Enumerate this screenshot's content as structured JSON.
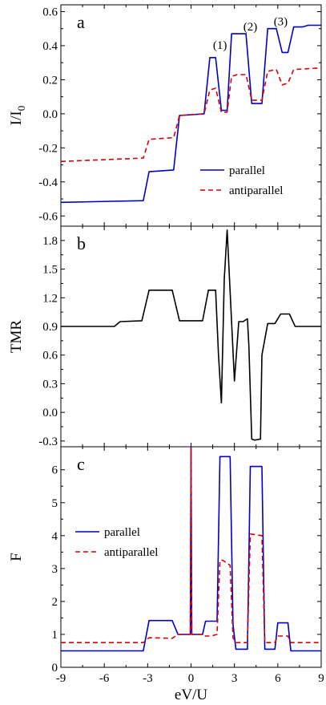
{
  "chart_data": [
    {
      "type": "line",
      "panel_label": "a",
      "ylabel_main": "I/I",
      "ylabel_sub": "0",
      "xlim": [
        -9,
        9
      ],
      "ylim": [
        -0.66,
        0.64
      ],
      "yticks": [
        -0.6,
        -0.4,
        -0.2,
        0.0,
        0.2,
        0.4,
        0.6
      ],
      "ytick_labels": [
        "-0.6",
        "-0.4",
        "-0.2",
        "0.0",
        "0.2",
        "0.4",
        "0.6"
      ],
      "annotations": [
        {
          "text": "(1)",
          "x": 2.0,
          "y": 0.38
        },
        {
          "text": "(2)",
          "x": 4.1,
          "y": 0.49
        },
        {
          "text": "(3)",
          "x": 6.2,
          "y": 0.52
        }
      ],
      "legend": {
        "position": "lower-right",
        "entries": [
          "parallel",
          "antiparallel"
        ]
      },
      "series": [
        {
          "name": "parallel",
          "color": "#0000cc",
          "dash": "solid",
          "x": [
            -9,
            -3.3,
            -2.9,
            -1.2,
            -0.8,
            0.9,
            1.3,
            1.7,
            2.1,
            2.5,
            2.8,
            3.2,
            3.8,
            4.2,
            4.9,
            5.3,
            5.9,
            6.3,
            6.7,
            7.1,
            7.7,
            8.1,
            9
          ],
          "y": [
            -0.52,
            -0.51,
            -0.34,
            -0.33,
            -0.01,
            0.0,
            0.33,
            0.33,
            0.02,
            0.02,
            0.47,
            0.47,
            0.47,
            0.06,
            0.06,
            0.5,
            0.5,
            0.36,
            0.36,
            0.51,
            0.51,
            0.52,
            0.52
          ]
        },
        {
          "name": "antiparallel",
          "color": "#dd0000",
          "dash": "dashed",
          "x": [
            -9,
            -3.3,
            -2.9,
            -1.2,
            -0.8,
            0.9,
            1.3,
            1.7,
            2.1,
            2.5,
            2.8,
            3.2,
            3.8,
            4.2,
            4.9,
            5.3,
            5.9,
            6.3,
            6.7,
            7.1,
            9
          ],
          "y": [
            -0.28,
            -0.26,
            -0.15,
            -0.14,
            -0.01,
            0.0,
            0.14,
            0.15,
            0.01,
            0.01,
            0.22,
            0.23,
            0.23,
            0.08,
            0.08,
            0.25,
            0.26,
            0.17,
            0.18,
            0.26,
            0.27
          ]
        }
      ]
    },
    {
      "type": "line",
      "panel_label": "b",
      "ylabel": "TMR",
      "xlim": [
        -9,
        9
      ],
      "ylim": [
        -0.36,
        1.95
      ],
      "yticks": [
        -0.3,
        0.0,
        0.3,
        0.6,
        0.9,
        1.2,
        1.5,
        1.8
      ],
      "ytick_labels": [
        "-0.3",
        "0.0",
        "0.3",
        "0.6",
        "0.9",
        "1.2",
        "1.5",
        "1.8"
      ],
      "series": [
        {
          "color": "#000000",
          "dash": "solid",
          "x": [
            -9,
            -5.3,
            -4.9,
            -3.4,
            -2.9,
            -1.3,
            -0.8,
            0.8,
            1.2,
            1.7,
            1.9,
            2.1,
            2.3,
            2.5,
            2.8,
            3.0,
            3.3,
            3.6,
            3.9,
            4.0,
            4.2,
            4.4,
            4.8,
            4.9,
            5.3,
            5.8,
            6.2,
            6.8,
            7.2,
            9
          ],
          "y": [
            0.9,
            0.9,
            0.95,
            0.96,
            1.28,
            1.28,
            0.96,
            0.96,
            1.28,
            1.28,
            0.6,
            0.1,
            1.4,
            1.91,
            0.95,
            0.33,
            0.95,
            0.95,
            0.98,
            0.7,
            -0.28,
            -0.29,
            -0.28,
            0.6,
            0.93,
            0.93,
            1.03,
            1.03,
            0.9,
            0.9
          ]
        }
      ]
    },
    {
      "type": "line",
      "panel_label": "c",
      "ylabel": "F",
      "xlabel": "eV/U",
      "xlim": [
        -9,
        9
      ],
      "xticks": [
        -9,
        -6,
        -3,
        0,
        3,
        6,
        9
      ],
      "xtick_labels": [
        "-9",
        "-6",
        "-3",
        "0",
        "3",
        "6",
        "9"
      ],
      "ylim": [
        0,
        6.7
      ],
      "yticks": [
        0,
        1,
        2,
        3,
        4,
        5,
        6
      ],
      "ytick_labels": [
        "0",
        "1",
        "2",
        "3",
        "4",
        "5",
        "6"
      ],
      "legend": {
        "position": "middle-left",
        "entries": [
          "parallel",
          "antiparallel"
        ]
      },
      "series": [
        {
          "name": "parallel",
          "color": "#0000cc",
          "dash": "solid",
          "x": [
            -9,
            -3.3,
            -2.9,
            -1.3,
            -0.9,
            -0.05,
            0,
            0.05,
            0.8,
            1.0,
            1.4,
            1.8,
            2.0,
            2.2,
            2.7,
            2.9,
            3.1,
            3.9,
            4.1,
            4.9,
            5.1,
            5.8,
            6.0,
            6.7,
            6.9,
            9
          ],
          "y": [
            0.5,
            0.5,
            1.42,
            1.42,
            1.0,
            1.0,
            6.7,
            1.0,
            1.0,
            1.4,
            1.4,
            1.4,
            6.4,
            6.4,
            6.4,
            1.3,
            0.55,
            0.55,
            6.1,
            6.1,
            0.55,
            0.55,
            1.35,
            1.35,
            0.5,
            0.5
          ]
        },
        {
          "name": "antiparallel",
          "color": "#dd0000",
          "dash": "dashed",
          "x": [
            -9,
            -3.3,
            -2.9,
            -1.3,
            -0.9,
            -0.05,
            0,
            0.05,
            0.8,
            1.0,
            1.4,
            1.8,
            2.0,
            2.2,
            2.7,
            2.9,
            3.1,
            3.9,
            4.1,
            4.9,
            5.1,
            5.8,
            6.0,
            6.7,
            6.9,
            9
          ],
          "y": [
            0.75,
            0.75,
            0.9,
            0.88,
            1.0,
            1.0,
            6.7,
            1.0,
            1.0,
            0.95,
            0.95,
            1.0,
            3.25,
            3.25,
            3.1,
            0.9,
            0.75,
            0.75,
            4.05,
            4.0,
            0.75,
            0.75,
            0.95,
            0.95,
            0.75,
            0.75
          ]
        }
      ]
    }
  ]
}
